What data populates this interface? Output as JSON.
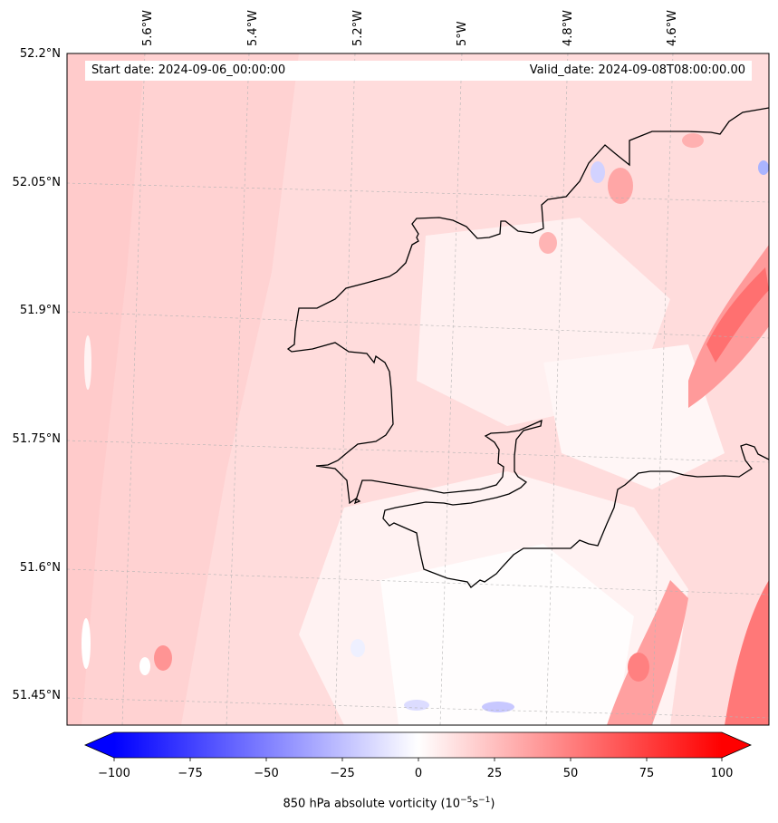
{
  "map": {
    "start_date": "Start date: 2024-09-06_00:00:00",
    "valid_date": "Valid_date: 2024-09-08T08:00:00.00",
    "lon_labels": [
      "5.6°W",
      "5.4°W",
      "5.2°W",
      "5°W",
      "4.8°W",
      "4.6°W"
    ],
    "lat_labels": [
      "52.2°N",
      "52.05°N",
      "51.9°N",
      "51.75°N",
      "51.6°N",
      "51.45°N"
    ],
    "variable": "850 hPa absolute vorticity"
  },
  "colorbar": {
    "ticks": [
      "−100",
      "−75",
      "−50",
      "−25",
      "0",
      "25",
      "50",
      "75",
      "100"
    ],
    "label": "850 hPa absolute vorticity (10",
    "label_sup1": "−5",
    "label_mid": "s",
    "label_sup2": "−1",
    "label_end": ")",
    "min": -100,
    "max": 100,
    "colormap": "bwr",
    "extend": "both"
  },
  "colors": {
    "frame": "#000000",
    "coastline": "#000000",
    "gridline": "#b4b4b4",
    "neg_max": "#0000ff",
    "zero": "#ffffff",
    "pos_max": "#ff0000"
  }
}
